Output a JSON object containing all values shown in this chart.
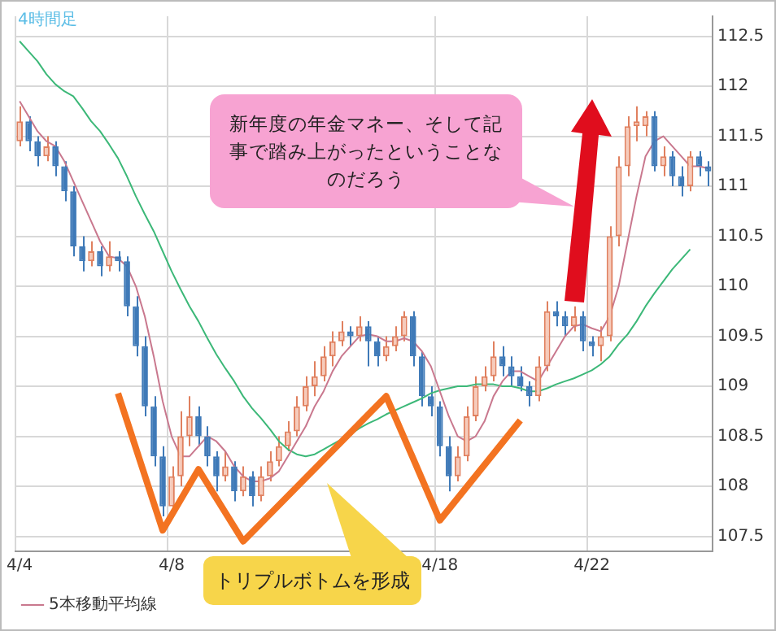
{
  "chart_data": {
    "type": "candlestick",
    "legend": "bottom left",
    "grid": true,
    "annotations": [
      "4時間足",
      "新年度の年金マネー、そして記事で踏み上がったということなのだろう",
      "トリプルボトムを形成"
    ],
    "categories": [
      "4/4",
      null,
      null,
      null,
      null,
      null,
      null,
      null,
      null,
      null,
      null,
      null,
      null,
      null,
      null,
      null,
      null,
      "4/8",
      null,
      null,
      null,
      null,
      null,
      null,
      null,
      null,
      null,
      null,
      null,
      null,
      null,
      null,
      null,
      null,
      null,
      null,
      null,
      null,
      null,
      null,
      null,
      null,
      null,
      null,
      null,
      null,
      null,
      "4/18",
      null,
      null,
      null,
      null,
      null,
      null,
      null,
      null,
      null,
      null,
      null,
      null,
      null,
      null,
      null,
      null,
      "4/22",
      null,
      null,
      null,
      null,
      null,
      null,
      null,
      null,
      null,
      null,
      null,
      null,
      null
    ],
    "ylim": [
      107.35,
      112.7
    ],
    "yticks": [
      107.5,
      108,
      108.5,
      109,
      109.5,
      110,
      110.5,
      111,
      111.5,
      112,
      112.5
    ],
    "ohlc": [
      [
        111.45,
        111.8,
        111.4,
        111.65
      ],
      [
        111.65,
        111.7,
        111.35,
        111.45
      ],
      [
        111.45,
        111.5,
        111.2,
        111.3
      ],
      [
        111.3,
        111.5,
        111.25,
        111.4
      ],
      [
        111.4,
        111.45,
        111.1,
        111.2
      ],
      [
        111.2,
        111.25,
        110.85,
        110.95
      ],
      [
        110.95,
        111.0,
        110.3,
        110.4
      ],
      [
        110.4,
        110.5,
        110.15,
        110.25
      ],
      [
        110.25,
        110.45,
        110.2,
        110.35
      ],
      [
        110.35,
        110.4,
        110.1,
        110.2
      ],
      [
        110.2,
        110.45,
        110.15,
        110.3
      ],
      [
        110.3,
        110.35,
        110.15,
        110.25
      ],
      [
        110.25,
        110.3,
        109.7,
        109.8
      ],
      [
        109.8,
        109.9,
        109.3,
        109.4
      ],
      [
        109.4,
        109.5,
        108.7,
        108.8
      ],
      [
        108.8,
        108.9,
        108.2,
        108.3
      ],
      [
        108.3,
        108.4,
        107.7,
        107.8
      ],
      [
        107.8,
        108.2,
        107.75,
        108.1
      ],
      [
        108.1,
        108.75,
        108.0,
        108.5
      ],
      [
        108.5,
        108.9,
        108.4,
        108.7
      ],
      [
        108.7,
        108.8,
        108.4,
        108.5
      ],
      [
        108.5,
        108.6,
        108.2,
        108.3
      ],
      [
        108.3,
        108.35,
        107.95,
        108.1
      ],
      [
        108.1,
        108.35,
        108.05,
        108.2
      ],
      [
        108.2,
        108.25,
        107.85,
        107.95
      ],
      [
        107.95,
        108.2,
        107.9,
        108.1
      ],
      [
        108.1,
        108.15,
        107.8,
        107.9
      ],
      [
        107.9,
        108.2,
        107.85,
        108.1
      ],
      [
        108.1,
        108.35,
        108.05,
        108.25
      ],
      [
        108.25,
        108.5,
        108.2,
        108.4
      ],
      [
        108.4,
        108.65,
        108.35,
        108.55
      ],
      [
        108.55,
        108.9,
        108.5,
        108.8
      ],
      [
        108.8,
        109.1,
        108.75,
        109.0
      ],
      [
        109.0,
        109.25,
        108.9,
        109.1
      ],
      [
        109.1,
        109.4,
        109.05,
        109.3
      ],
      [
        109.3,
        109.55,
        109.2,
        109.45
      ],
      [
        109.45,
        109.65,
        109.4,
        109.55
      ],
      [
        109.55,
        109.6,
        109.4,
        109.5
      ],
      [
        109.5,
        109.7,
        109.45,
        109.6
      ],
      [
        109.6,
        109.65,
        109.2,
        109.45
      ],
      [
        109.45,
        109.5,
        109.2,
        109.3
      ],
      [
        109.3,
        109.5,
        109.25,
        109.4
      ],
      [
        109.4,
        109.6,
        109.35,
        109.5
      ],
      [
        109.5,
        109.75,
        109.45,
        109.7
      ],
      [
        109.7,
        109.75,
        109.2,
        109.3
      ],
      [
        109.3,
        109.35,
        108.8,
        108.9
      ],
      [
        108.9,
        109.0,
        108.7,
        108.8
      ],
      [
        108.8,
        108.85,
        108.3,
        108.4
      ],
      [
        108.4,
        108.5,
        107.95,
        108.1
      ],
      [
        108.1,
        108.4,
        108.05,
        108.3
      ],
      [
        108.3,
        108.8,
        108.25,
        108.7
      ],
      [
        108.7,
        109.1,
        108.65,
        109.0
      ],
      [
        109.0,
        109.2,
        108.95,
        109.1
      ],
      [
        109.1,
        109.45,
        109.05,
        109.3
      ],
      [
        109.3,
        109.4,
        109.1,
        109.2
      ],
      [
        109.2,
        109.3,
        109.0,
        109.1
      ],
      [
        109.1,
        109.2,
        108.95,
        109.0
      ],
      [
        109.0,
        109.05,
        108.8,
        108.9
      ],
      [
        108.9,
        109.3,
        108.85,
        109.2
      ],
      [
        109.2,
        109.85,
        109.15,
        109.75
      ],
      [
        109.75,
        109.85,
        109.6,
        109.7
      ],
      [
        109.7,
        109.75,
        109.5,
        109.6
      ],
      [
        109.6,
        109.8,
        109.55,
        109.7
      ],
      [
        109.7,
        109.75,
        109.35,
        109.45
      ],
      [
        109.45,
        109.5,
        109.3,
        109.4
      ],
      [
        109.4,
        109.6,
        109.25,
        109.5
      ],
      [
        109.5,
        110.6,
        109.45,
        110.5
      ],
      [
        110.5,
        111.3,
        110.4,
        111.2
      ],
      [
        111.2,
        111.7,
        111.1,
        111.6
      ],
      [
        111.6,
        111.8,
        111.45,
        111.65
      ],
      [
        111.6,
        111.75,
        111.5,
        111.7
      ],
      [
        111.7,
        111.75,
        111.15,
        111.2
      ],
      [
        111.2,
        111.4,
        111.1,
        111.3
      ],
      [
        111.3,
        111.35,
        111.0,
        111.1
      ],
      [
        111.1,
        111.2,
        110.9,
        111.0
      ],
      [
        111.0,
        111.35,
        110.95,
        111.3
      ],
      [
        111.3,
        111.35,
        111.1,
        111.2
      ],
      [
        111.2,
        111.25,
        111.0,
        111.15
      ]
    ],
    "series": [
      {
        "name": "5本移動平均線",
        "type": "line",
        "color": "#c9788e",
        "values": [
          111.85,
          111.7,
          111.55,
          111.45,
          111.4,
          111.25,
          111.05,
          110.85,
          110.65,
          110.45,
          110.3,
          110.28,
          110.2,
          110.0,
          109.7,
          109.3,
          108.85,
          108.5,
          108.3,
          108.3,
          108.4,
          108.5,
          108.45,
          108.35,
          108.2,
          108.1,
          108.05,
          108.05,
          108.08,
          108.15,
          108.3,
          108.45,
          108.6,
          108.8,
          108.95,
          109.15,
          109.3,
          109.4,
          109.5,
          109.52,
          109.5,
          109.45,
          109.45,
          109.48,
          109.45,
          109.35,
          109.2,
          108.95,
          108.7,
          108.5,
          108.45,
          108.5,
          108.65,
          108.9,
          109.05,
          109.15,
          109.15,
          109.1,
          109.05,
          109.2,
          109.35,
          109.5,
          109.6,
          109.62,
          109.58,
          109.55,
          109.7,
          110.0,
          110.45,
          110.9,
          111.3,
          111.45,
          111.5,
          111.4,
          111.3,
          111.2,
          111.2,
          111.18
        ]
      },
      {
        "type": "line",
        "color": "#3cb878",
        "values": [
          112.45,
          112.35,
          112.25,
          112.12,
          112.02,
          111.95,
          111.9,
          111.78,
          111.65,
          111.55,
          111.42,
          111.28,
          111.1,
          110.9,
          110.72,
          110.55,
          110.35,
          110.15,
          109.97,
          109.8,
          109.65,
          109.48,
          109.32,
          109.18,
          109.05,
          108.9,
          108.78,
          108.68,
          108.57,
          108.45,
          108.37,
          108.32,
          108.3,
          108.32,
          108.37,
          108.42,
          108.47,
          108.52,
          108.58,
          108.63,
          108.67,
          108.72,
          108.76,
          108.8,
          108.84,
          108.88,
          108.93,
          108.96,
          108.98,
          109.0,
          109.0,
          109.02,
          109.02,
          109.02,
          109.0,
          109.0,
          108.98,
          108.95,
          108.95,
          108.98,
          109.02,
          109.05,
          109.08,
          109.12,
          109.16,
          109.22,
          109.3,
          109.42,
          109.52,
          109.65,
          109.8,
          109.93,
          110.05,
          110.17,
          110.27,
          110.37,
          null,
          null
        ]
      },
      {
        "type": "line",
        "color": "#f37321",
        "values": [
          null,
          null,
          null,
          null,
          null,
          null,
          null,
          null,
          null,
          null,
          null,
          108.93,
          null,
          null,
          null,
          null,
          107.56,
          null,
          null,
          null,
          108.17,
          null,
          null,
          null,
          null,
          107.45,
          null,
          null,
          null,
          null,
          null,
          null,
          null,
          null,
          null,
          null,
          null,
          null,
          null,
          null,
          null,
          108.9,
          null,
          null,
          null,
          null,
          null,
          107.66,
          null,
          null,
          null,
          null,
          null,
          null,
          null,
          null,
          108.66,
          null,
          null,
          null,
          null,
          null,
          null,
          null,
          null,
          null,
          null,
          null,
          null,
          null,
          null,
          null,
          null,
          null,
          null,
          null,
          null,
          null
        ]
      }
    ]
  }
}
